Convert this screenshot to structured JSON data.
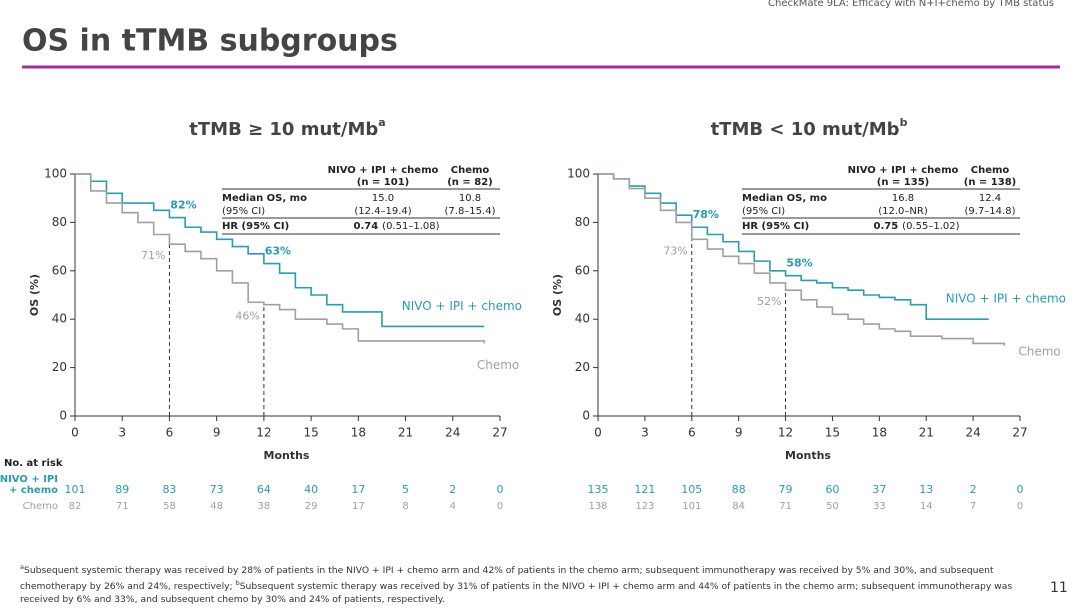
{
  "header": {
    "running_title": "CheckMate 9LA: Efficacy with N+I+chemo by TMB status",
    "title": "OS in tTMB subgroups"
  },
  "chart_data": [
    {
      "type": "km",
      "title": "tTMB ≥ 10 mut/Mb",
      "title_superscript": "a",
      "x_label": "Months",
      "y_label": "OS (%)",
      "xlim": [
        0,
        27
      ],
      "ylim": [
        0,
        100
      ],
      "xticks": [
        0,
        3,
        6,
        9,
        12,
        15,
        18,
        21,
        24,
        27
      ],
      "yticks": [
        0,
        20,
        40,
        60,
        80,
        100
      ],
      "series": [
        {
          "name": "NIVO + IPI + chemo",
          "color": "#2b9bb0",
          "x": [
            0,
            1,
            2,
            3,
            4,
            5,
            6,
            7,
            8,
            9,
            10,
            11,
            12,
            13,
            14,
            15,
            16,
            17,
            18,
            19,
            19.5,
            26
          ],
          "values": [
            100,
            97,
            92,
            88,
            88,
            85,
            82,
            78,
            76,
            73,
            70,
            67,
            63,
            59,
            53,
            50,
            46,
            43,
            43,
            43,
            37,
            37
          ]
        },
        {
          "name": "Chemo",
          "color": "#a0a0a0",
          "x": [
            0,
            1,
            2,
            3,
            4,
            5,
            6,
            7,
            8,
            9,
            10,
            11,
            12,
            13,
            14,
            15,
            16,
            17,
            18,
            26
          ],
          "values": [
            100,
            93,
            88,
            84,
            80,
            75,
            71,
            68,
            65,
            60,
            55,
            47,
            46,
            44,
            40,
            40,
            38,
            36,
            31,
            30
          ]
        }
      ],
      "annotations": [
        {
          "x": 6,
          "y": 82,
          "label": "82%",
          "color": "#2b9bb0"
        },
        {
          "x": 12,
          "y": 63,
          "label": "63%",
          "color": "#2b9bb0"
        },
        {
          "x": 6,
          "y": 71,
          "label": "71%",
          "color": "#a0a0a0"
        },
        {
          "x": 12,
          "y": 46,
          "label": "46%",
          "color": "#a0a0a0"
        }
      ],
      "inset_table": {
        "header": [
          [
            "NIVO + IPI + chemo",
            "(n = 101)"
          ],
          [
            "Chemo",
            "(n = 82)"
          ]
        ],
        "median_label": [
          "Median OS, mo",
          "(95% CI)"
        ],
        "median_cells": [
          [
            "15.0",
            "(12.4–19.4)"
          ],
          [
            "10.8",
            "(7.8–15.4)"
          ]
        ],
        "hr_label": "HR (95% CI)",
        "hr": "0.74",
        "hr_ci": "(0.51–1.08)"
      },
      "number_at_risk": {
        "title": "No. at risk",
        "rows": [
          {
            "label": [
              "NIVO + IPI",
              "+ chemo"
            ],
            "values": [
              101,
              89,
              83,
              73,
              64,
              40,
              17,
              5,
              2,
              0
            ]
          },
          {
            "label": [
              "Chemo"
            ],
            "values": [
              82,
              71,
              58,
              48,
              38,
              29,
              17,
              8,
              4,
              0
            ]
          }
        ]
      }
    },
    {
      "type": "km",
      "title": "tTMB < 10 mut/Mb",
      "title_superscript": "b",
      "x_label": "Months",
      "y_label": "OS (%)",
      "xlim": [
        0,
        27
      ],
      "ylim": [
        0,
        100
      ],
      "xticks": [
        0,
        3,
        6,
        9,
        12,
        15,
        18,
        21,
        24,
        27
      ],
      "yticks": [
        0,
        20,
        40,
        60,
        80,
        100
      ],
      "series": [
        {
          "name": "NIVO + IPI + chemo",
          "color": "#2b9bb0",
          "x": [
            0,
            1,
            2,
            3,
            4,
            5,
            6,
            7,
            8,
            9,
            10,
            11,
            12,
            13,
            14,
            15,
            16,
            17,
            18,
            19,
            20,
            21,
            25
          ],
          "values": [
            100,
            98,
            95,
            92,
            88,
            83,
            78,
            75,
            72,
            68,
            64,
            60,
            58,
            56,
            55,
            53,
            52,
            50,
            49,
            48,
            46,
            40,
            40
          ]
        },
        {
          "name": "Chemo",
          "color": "#a0a0a0",
          "x": [
            0,
            1,
            2,
            3,
            4,
            5,
            6,
            7,
            8,
            9,
            10,
            11,
            12,
            13,
            14,
            15,
            16,
            17,
            18,
            19,
            20,
            22,
            23,
            24,
            26
          ],
          "values": [
            100,
            98,
            94,
            90,
            85,
            80,
            73,
            69,
            66,
            63,
            59,
            55,
            52,
            48,
            45,
            42,
            40,
            38,
            36,
            35,
            33,
            32,
            32,
            30,
            29
          ]
        }
      ],
      "annotations": [
        {
          "x": 6,
          "y": 78,
          "label": "78%",
          "color": "#2b9bb0"
        },
        {
          "x": 12,
          "y": 58,
          "label": "58%",
          "color": "#2b9bb0"
        },
        {
          "x": 6,
          "y": 73,
          "label": "73%",
          "color": "#a0a0a0"
        },
        {
          "x": 12,
          "y": 52,
          "label": "52%",
          "color": "#a0a0a0"
        }
      ],
      "inset_table": {
        "header": [
          [
            "NIVO + IPI + chemo",
            "(n = 135)"
          ],
          [
            "Chemo",
            "(n = 138)"
          ]
        ],
        "median_label": [
          "Median OS, mo",
          "(95% CI)"
        ],
        "median_cells": [
          [
            "16.8",
            "(12.0–NR)"
          ],
          [
            "12.4",
            "(9.7–14.8)"
          ]
        ],
        "hr_label": "HR (95% CI)",
        "hr": "0.75",
        "hr_ci": "(0.55–1.02)"
      },
      "number_at_risk": {
        "rows": [
          {
            "values": [
              135,
              121,
              105,
              88,
              79,
              60,
              37,
              13,
              2,
              0
            ]
          },
          {
            "values": [
              138,
              123,
              101,
              84,
              71,
              50,
              33,
              14,
              7,
              0
            ]
          }
        ]
      }
    }
  ],
  "footnote": {
    "marker_a": "a",
    "text_a": "Subsequent systemic therapy was received by 28% of patients in the NIVO + IPI + chemo arm and 42% of patients in the chemo arm; subsequent immunotherapy was received by 5% and 30%, and subsequent chemotherapy by 26% and 24%, respectively; ",
    "marker_b": "b",
    "text_b": "Subsequent systemic therapy was received by 31% of patients in the NIVO + IPI + chemo arm and 44% of patients in the chemo arm; subsequent immunotherapy was received by 6% and 33%, and subsequent chemo by 30% and 24% of patients, respectively."
  },
  "page_number": "11"
}
